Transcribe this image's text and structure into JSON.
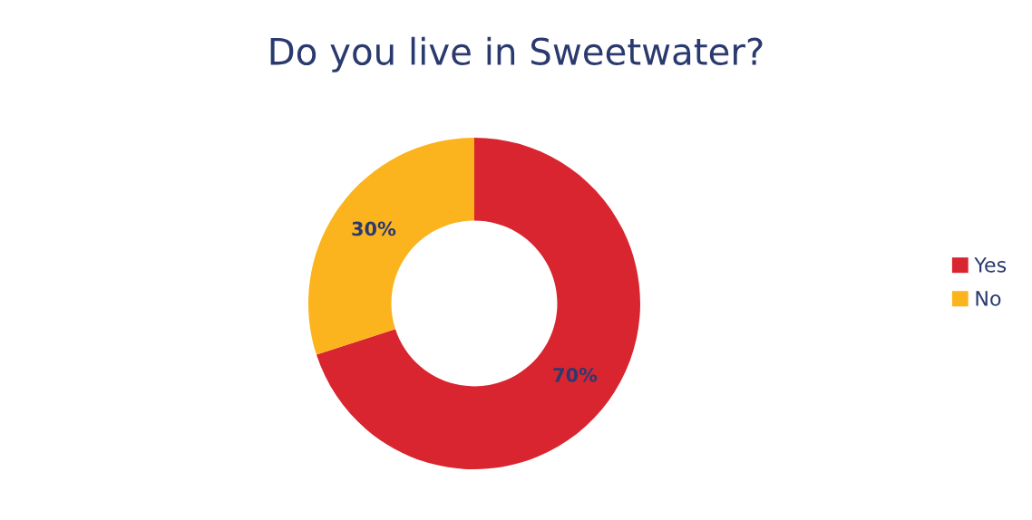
{
  "chart_data": {
    "type": "donut",
    "title": "Do you live in Sweetwater?",
    "categories": [
      "Yes",
      "No"
    ],
    "values": [
      70,
      30
    ],
    "colors": [
      "#d9252f",
      "#fbb41d"
    ],
    "value_labels": [
      "70%",
      "30%"
    ],
    "legend": "right"
  }
}
